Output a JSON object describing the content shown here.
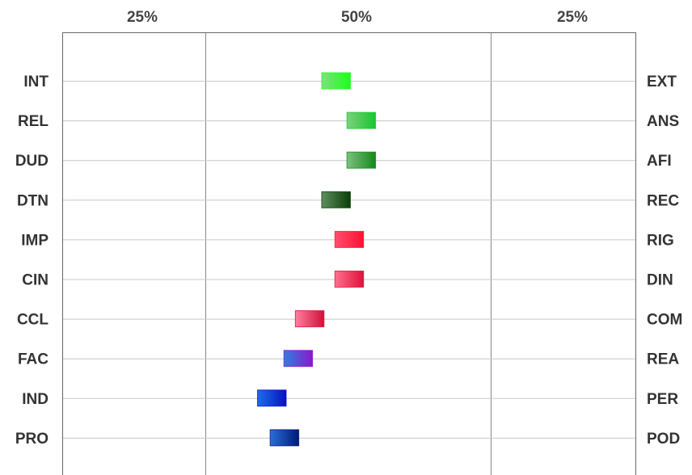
{
  "chart_data": {
    "type": "bar",
    "subtype": "bipolar-range",
    "top_tick_labels": [
      "25%",
      "50%",
      "25%"
    ],
    "x_range": [
      0,
      100
    ],
    "grid": true,
    "rows": [
      {
        "left": "INT",
        "right": "EXT",
        "start": 45.2,
        "end": 50.2,
        "color_from": "#7fe07f",
        "color_to": "#1aff1a"
      },
      {
        "left": "REL",
        "right": "ANS",
        "start": 49.6,
        "end": 54.6,
        "color_from": "#7fcf7f",
        "color_to": "#16c82e"
      },
      {
        "left": "DUD",
        "right": "AFI",
        "start": 49.6,
        "end": 54.6,
        "color_from": "#7fbf7f",
        "color_to": "#138a1a"
      },
      {
        "left": "DTN",
        "right": "REC",
        "start": 45.2,
        "end": 50.2,
        "color_from": "#5f8f5f",
        "color_to": "#0a3d0a"
      },
      {
        "left": "IMP",
        "right": "RIG",
        "start": 47.5,
        "end": 52.5,
        "color_from": "#ff4f6f",
        "color_to": "#ff1030"
      },
      {
        "left": "CIN",
        "right": "DIN",
        "start": 47.5,
        "end": 52.5,
        "color_from": "#ff6f8f",
        "color_to": "#e0103a"
      },
      {
        "left": "CCL",
        "right": "COM",
        "start": 40.6,
        "end": 45.6,
        "color_from": "#ff7f9f",
        "color_to": "#d0103a"
      },
      {
        "left": "FAC",
        "right": "REA",
        "start": 38.6,
        "end": 43.6,
        "color_from": "#3080e0",
        "color_to": "#8a18c8"
      },
      {
        "left": "IND",
        "right": "PER",
        "start": 34.0,
        "end": 39.0,
        "color_from": "#1a70e8",
        "color_to": "#0a10c0"
      },
      {
        "left": "PRO",
        "right": "POD",
        "start": 36.2,
        "end": 41.2,
        "color_from": "#2a6ed8",
        "color_to": "#001a78"
      }
    ]
  }
}
